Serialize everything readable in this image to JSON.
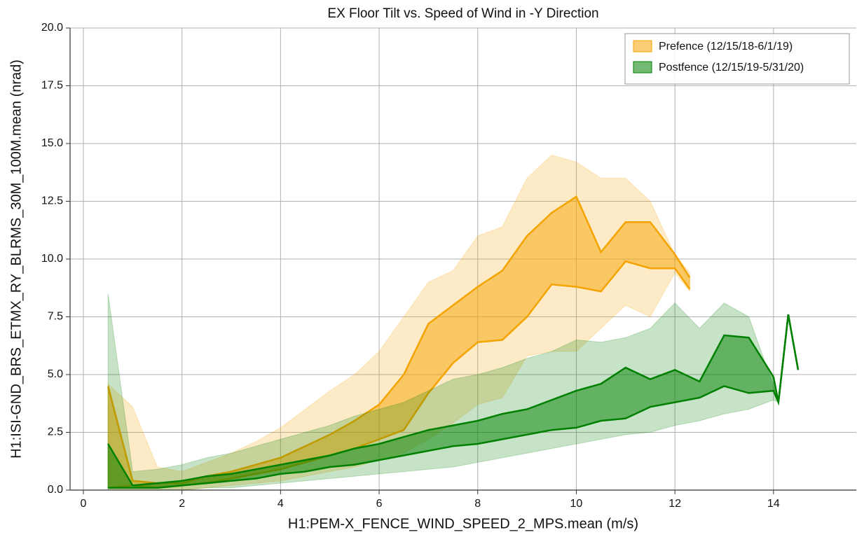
{
  "chart_data": {
    "type": "band",
    "title": "EX Floor Tilt vs. Speed of Wind in -Y Direction",
    "x_label": "H1:PEM-X_FENCE_WIND_SPEED_2_MPS.mean (m/s)",
    "y_label": "H1:ISI-GND_BRS_ETMX_RY_BLRMS_30M_100M.mean (nrad)",
    "xlim": [
      -0.27,
      15.68
    ],
    "ylim": [
      0,
      20
    ],
    "xticks": [
      0,
      2,
      4,
      6,
      8,
      10,
      12,
      14
    ],
    "yticks": [
      {
        "value": 0,
        "label": "0.0"
      },
      {
        "value": 2.5,
        "label": "2.5"
      },
      {
        "value": 5,
        "label": "5.0"
      },
      {
        "value": 7.5,
        "label": "7.5"
      },
      {
        "value": 10,
        "label": "10.0"
      },
      {
        "value": 12.5,
        "label": "12.5"
      },
      {
        "value": 15,
        "label": "15.0"
      },
      {
        "value": 17.5,
        "label": "17.5"
      },
      {
        "value": 20,
        "label": "20.0"
      }
    ],
    "grid": true,
    "legend": "upper right",
    "series": [
      {
        "name": "Prefence (12/15/18-6/1/19)",
        "color": "#f5a300",
        "x": [
          0.5,
          1,
          1.5,
          2,
          2.5,
          3,
          3.5,
          4,
          4.5,
          5,
          5.5,
          6,
          6.5,
          7,
          7.5,
          8,
          8.5,
          9,
          9.5,
          10,
          10.5,
          11,
          11.5,
          12,
          12.3
        ],
        "inner_low": [
          0.1,
          0.2,
          0.1,
          0.2,
          0.3,
          0.5,
          0.7,
          0.9,
          1.2,
          1.5,
          1.8,
          2.2,
          2.6,
          4.2,
          5.5,
          6.4,
          6.5,
          7.5,
          8.9,
          8.8,
          8.6,
          9.9,
          9.6,
          9.6,
          8.7
        ],
        "inner_high": [
          4.5,
          0.4,
          0.3,
          0.3,
          0.6,
          0.8,
          1.1,
          1.4,
          1.9,
          2.4,
          3.0,
          3.7,
          5.0,
          7.2,
          8.0,
          8.8,
          9.5,
          11.0,
          12.0,
          12.7,
          10.3,
          11.6,
          11.6,
          10.2,
          9.2
        ],
        "outer_low": [
          0,
          0,
          0,
          0,
          0.1,
          0.2,
          0.3,
          0.4,
          0.6,
          0.8,
          1.0,
          1.3,
          1.6,
          2.2,
          2.9,
          3.7,
          4.0,
          5.8,
          6.0,
          6.0,
          7.0,
          8.0,
          7.5,
          9.4,
          8.6
        ],
        "outer_high": [
          4.6,
          3.6,
          1.0,
          0.8,
          1.2,
          1.6,
          2.1,
          2.7,
          3.5,
          4.3,
          5.0,
          6.0,
          7.5,
          9.0,
          9.5,
          11.0,
          11.4,
          13.5,
          14.5,
          14.2,
          13.5,
          13.5,
          12.5,
          10.2,
          9.4
        ]
      },
      {
        "name": "Postfence (12/15/19-5/31/20)",
        "color": "#008000",
        "x": [
          0.5,
          1,
          1.5,
          2,
          2.5,
          3,
          3.5,
          4,
          4.5,
          5,
          5.5,
          6,
          6.5,
          7,
          7.5,
          8,
          8.5,
          9,
          9.5,
          10,
          10.5,
          11,
          11.5,
          12,
          12.5,
          13,
          13.5,
          14,
          14.1,
          14.3,
          14.5
        ],
        "inner_low": [
          0.1,
          0.1,
          0.1,
          0.2,
          0.3,
          0.4,
          0.5,
          0.7,
          0.8,
          1.0,
          1.1,
          1.3,
          1.5,
          1.7,
          1.9,
          2.0,
          2.2,
          2.4,
          2.6,
          2.7,
          3.0,
          3.1,
          3.6,
          3.8,
          4.0,
          4.5,
          4.2,
          4.3,
          3.8,
          7.6,
          5.2
        ],
        "inner_high": [
          2.0,
          0.2,
          0.3,
          0.4,
          0.6,
          0.7,
          0.9,
          1.1,
          1.3,
          1.5,
          1.8,
          2.0,
          2.3,
          2.6,
          2.8,
          3.0,
          3.3,
          3.5,
          3.9,
          4.3,
          4.6,
          5.3,
          4.8,
          5.2,
          4.7,
          6.7,
          6.6,
          4.9,
          3.8,
          7.6,
          5.2
        ],
        "outer_low": [
          0,
          0,
          0,
          0,
          0.1,
          0.1,
          0.2,
          0.3,
          0.4,
          0.5,
          0.6,
          0.7,
          0.8,
          0.9,
          1.0,
          1.2,
          1.4,
          1.6,
          1.8,
          2.0,
          2.2,
          2.4,
          2.5,
          2.8,
          3.0,
          3.3,
          3.5,
          3.9,
          3.8,
          7.6,
          5.2
        ],
        "outer_high": [
          8.5,
          0.8,
          0.9,
          1.1,
          1.4,
          1.6,
          1.9,
          2.2,
          2.5,
          2.8,
          3.2,
          3.5,
          3.8,
          4.3,
          4.8,
          5.0,
          5.3,
          5.7,
          6.0,
          6.5,
          6.4,
          6.6,
          7.0,
          8.1,
          7.0,
          8.1,
          7.5,
          4.5,
          3.8,
          7.6,
          5.2
        ]
      }
    ]
  }
}
